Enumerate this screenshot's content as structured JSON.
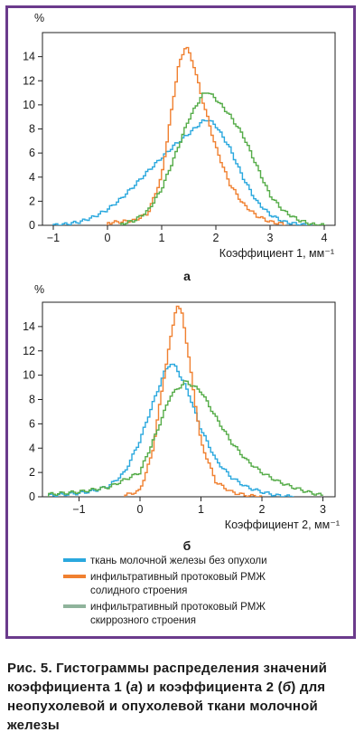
{
  "chart_data": [
    {
      "type": "line",
      "panel_label": "а",
      "xlabel": "Коэффициент 1, мм⁻¹",
      "ylabel": "%",
      "xlim": [
        -1.2,
        4.2
      ],
      "ylim": [
        0,
        16
      ],
      "xticks": [
        -1,
        0,
        1,
        2,
        3,
        4
      ],
      "yticks": [
        0,
        2,
        4,
        6,
        8,
        10,
        12,
        14
      ],
      "grid": false,
      "series": [
        {
          "name": "ткань молочной железы без опухоли",
          "color": "#2aa8de",
          "x": [
            -1.0,
            -0.75,
            -0.5,
            -0.25,
            0.0,
            0.25,
            0.5,
            0.75,
            1.0,
            1.25,
            1.5,
            1.75,
            1.85,
            2.0,
            2.25,
            2.5,
            2.75,
            3.0,
            3.25,
            3.5,
            3.75
          ],
          "y": [
            0.0,
            0.1,
            0.3,
            0.7,
            1.3,
            2.2,
            3.3,
            4.5,
            5.6,
            6.7,
            7.6,
            8.6,
            8.8,
            8.3,
            6.5,
            4.0,
            2.0,
            0.9,
            0.3,
            0.1,
            0.0
          ]
        },
        {
          "name": "инфильтративный протоковый РМЖ солидного строения",
          "color": "#f08030",
          "x": [
            0.0,
            0.25,
            0.5,
            0.75,
            1.0,
            1.15,
            1.3,
            1.45,
            1.6,
            1.75,
            2.0,
            2.25,
            2.5,
            2.75,
            3.0,
            3.25
          ],
          "y": [
            0.2,
            0.3,
            0.4,
            1.0,
            4.0,
            8.5,
            13.0,
            15.0,
            13.2,
            10.5,
            6.5,
            3.5,
            1.8,
            0.8,
            0.3,
            0.1
          ]
        },
        {
          "name": "инфильтративный протоковый РМЖ скиррозного строения",
          "color": "#55ac48",
          "x": [
            0.25,
            0.5,
            0.75,
            1.0,
            1.25,
            1.5,
            1.75,
            1.85,
            2.0,
            2.25,
            2.5,
            2.75,
            3.0,
            3.25,
            3.5,
            3.75,
            4.0
          ],
          "y": [
            0.1,
            0.4,
            1.2,
            3.0,
            5.8,
            8.8,
            10.8,
            11.1,
            10.5,
            9.2,
            7.5,
            5.0,
            2.5,
            1.2,
            0.5,
            0.1,
            0.0
          ]
        }
      ]
    },
    {
      "type": "line",
      "panel_label": "б",
      "xlabel": "Коэффициент 2, мм⁻¹",
      "ylabel": "%",
      "xlim": [
        -1.6,
        3.2
      ],
      "ylim": [
        0,
        16
      ],
      "xticks": [
        -1,
        0,
        1,
        2,
        3
      ],
      "yticks": [
        0,
        2,
        4,
        6,
        8,
        10,
        12,
        14
      ],
      "grid": false,
      "series": [
        {
          "name": "ткань молочной железы без опухоли",
          "color": "#2aa8de",
          "x": [
            -1.5,
            -1.25,
            -1.0,
            -0.75,
            -0.5,
            -0.25,
            0.0,
            0.2,
            0.4,
            0.5,
            0.6,
            0.8,
            1.0,
            1.25,
            1.5,
            1.75,
            2.0,
            2.25,
            2.5
          ],
          "y": [
            0.1,
            0.2,
            0.3,
            0.5,
            0.9,
            2.0,
            4.6,
            7.5,
            10.2,
            11.0,
            10.6,
            8.5,
            5.6,
            3.0,
            1.6,
            0.8,
            0.4,
            0.1,
            0.0
          ]
        },
        {
          "name": "инфильтративный протоковый РМЖ солидного строения",
          "color": "#f08030",
          "x": [
            -0.25,
            0.0,
            0.2,
            0.4,
            0.6,
            0.7,
            0.8,
            1.0,
            1.25,
            1.5,
            1.75,
            2.0
          ],
          "y": [
            0.1,
            0.5,
            3.5,
            10.0,
            15.8,
            15.0,
            11.5,
            4.5,
            1.2,
            0.4,
            0.1,
            0.0
          ]
        },
        {
          "name": "инфильтративный протоковый РМЖ скиррозного строения",
          "color": "#55ac48",
          "x": [
            -1.5,
            -1.0,
            -0.5,
            0.0,
            0.25,
            0.5,
            0.75,
            1.0,
            1.25,
            1.5,
            1.75,
            2.0,
            2.25,
            2.5,
            2.75,
            3.0
          ],
          "y": [
            0.2,
            0.4,
            0.8,
            2.0,
            5.0,
            8.3,
            9.5,
            8.7,
            6.5,
            4.5,
            3.0,
            2.0,
            1.3,
            0.8,
            0.4,
            0.1
          ]
        }
      ]
    }
  ],
  "legend": [
    {
      "label_lines": [
        "ткань молочной железы без опухоли"
      ],
      "color": "#2aa8de"
    },
    {
      "label_lines": [
        "инфильтративный протоковый РМЖ",
        "солидного строения"
      ],
      "color": "#f08030"
    },
    {
      "label_lines": [
        "инфильтративный протоковый РМЖ",
        "скиррозного строения"
      ],
      "color": "#8fb39b"
    }
  ],
  "caption": {
    "prefix": "Рис. 5. Гистограммы распределения зна­чений коэффициента 1 (",
    "a": "а",
    "middle": ") и коэффициен­та 2 (",
    "b": "б",
    "suffix": ") для неопухолевой и опухолевой тка­ни молочной железы"
  },
  "frame_color": "#6b3b8c"
}
